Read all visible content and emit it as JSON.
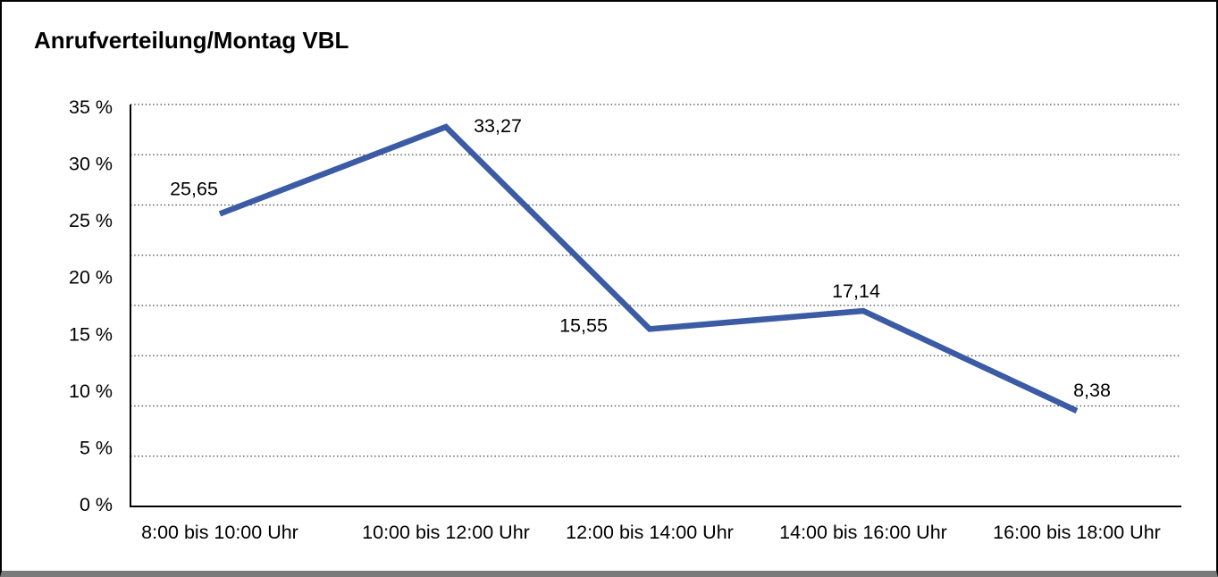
{
  "window": {
    "background": "#ffffff",
    "frame_border_color": "#000000",
    "bottom_bar_color": "#7a7a7a"
  },
  "chart_data": {
    "type": "line",
    "title": "Anrufverteilung/Montag VBL",
    "categories": [
      "8:00 bis 10:00 Uhr",
      "10:00 bis 12:00 Uhr",
      "12:00 bis 14:00 Uhr",
      "14:00 bis 16:00 Uhr",
      "16:00 bis 18:00 Uhr"
    ],
    "values": [
      25.65,
      33.27,
      15.55,
      17.14,
      8.38
    ],
    "value_labels": [
      "25,65",
      "33,27",
      "15,55",
      "17,14",
      "8,38"
    ],
    "y_tick_labels": [
      "35 %",
      "30 %",
      "25 %",
      "20 %",
      "15 %",
      "10 %",
      "5 %",
      "0 %"
    ],
    "xlabel": "",
    "ylabel": "",
    "ylim": [
      0,
      35
    ],
    "grid": "horizontal-dotted",
    "legend": "none",
    "colors": {
      "series_line": "#3B5BA5",
      "gridline": "#444444",
      "axis": "#000000",
      "text": "#000000"
    }
  }
}
